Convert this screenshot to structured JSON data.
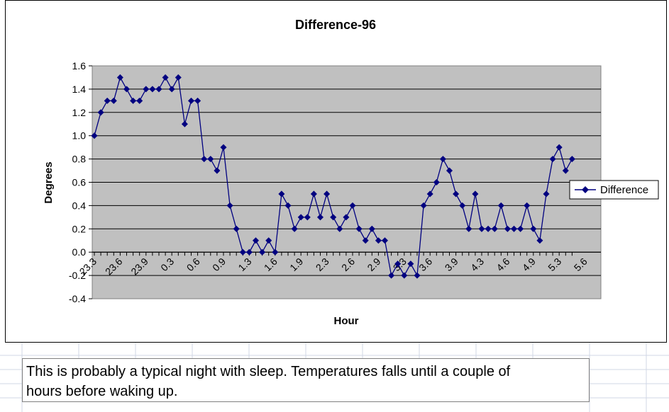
{
  "note": {
    "line1": "This is probably a typical night with sleep. Temperatures falls until a couple of",
    "line2": "hours before waking up."
  },
  "chart_data": {
    "type": "line",
    "title": "Difference-96",
    "xlabel": "Hour",
    "ylabel": "Degrees",
    "ylim": [
      -0.4,
      1.6
    ],
    "y_ticks": [
      "1.6",
      "1.4",
      "1.2",
      "1.0",
      "0.8",
      "0.6",
      "0.4",
      "0.2",
      "0.0",
      "-0.2",
      "-0.4"
    ],
    "x_tick_labels": [
      "23.3",
      "23.6",
      "23.9",
      "0.3",
      "0.6",
      "0.9",
      "1.3",
      "1.6",
      "1.9",
      "2.3",
      "2.6",
      "2.9",
      "3.3",
      "3.6",
      "3.9",
      "4.3",
      "4.6",
      "4.9",
      "5.3",
      "5.6"
    ],
    "grid": true,
    "legend": {
      "position": "right",
      "entries": [
        "Difference"
      ]
    },
    "colors": {
      "plot_background": "#c0c0c0",
      "series": "#000080",
      "gridline": "#000000"
    },
    "series": [
      {
        "name": "Difference",
        "values": [
          1.0,
          1.2,
          1.3,
          1.3,
          1.5,
          1.4,
          1.3,
          1.3,
          1.4,
          1.4,
          1.4,
          1.5,
          1.4,
          1.5,
          1.1,
          1.3,
          1.3,
          0.8,
          0.8,
          0.7,
          0.9,
          0.4,
          0.2,
          0.0,
          0.0,
          0.1,
          0.0,
          0.1,
          0.0,
          0.5,
          0.4,
          0.2,
          0.3,
          0.3,
          0.5,
          0.3,
          0.5,
          0.3,
          0.2,
          0.3,
          0.4,
          0.2,
          0.1,
          0.2,
          0.1,
          0.1,
          -0.2,
          -0.1,
          -0.2,
          -0.1,
          -0.2,
          0.4,
          0.5,
          0.6,
          0.8,
          0.7,
          0.5,
          0.4,
          0.2,
          0.5,
          0.2,
          0.2,
          0.2,
          0.4,
          0.2,
          0.2,
          0.2,
          0.4,
          0.2,
          0.1,
          0.5,
          0.8,
          0.9,
          0.7,
          0.8
        ]
      }
    ]
  }
}
